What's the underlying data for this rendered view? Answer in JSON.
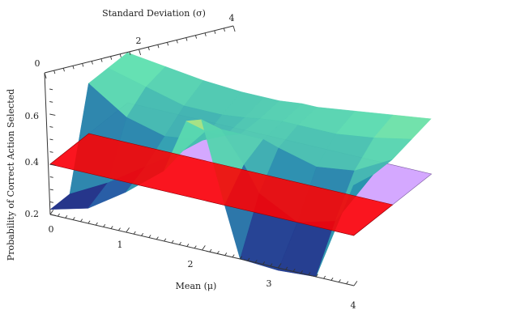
{
  "chart_data": {
    "type": "surface3d",
    "x_axis": {
      "label": "Mean (μ)",
      "range": [
        0,
        4
      ],
      "ticks": [
        "0",
        "1",
        "2",
        "3",
        "4"
      ]
    },
    "y_axis": {
      "label": "Standard Deviation (σ)",
      "range": [
        0,
        4
      ],
      "ticks": [
        "0",
        "2",
        "4"
      ]
    },
    "z_axis": {
      "label": "Probability of Correct Action Selected",
      "range": [
        0.18,
        0.72
      ],
      "ticks": [
        "0.2",
        "0.4",
        "0.6"
      ]
    },
    "surfaces": [
      {
        "color": "#cc99ff",
        "z": 0.4
      },
      {
        "color": "#ff0000",
        "region": {
          "x": [
            0,
            4
          ],
          "y": [
            0,
            2
          ]
        },
        "z": 0.4
      },
      {
        "colormap": [
          "#1a0a6b",
          "#1f4fa0",
          "#2a9bb0",
          "#5fe0b0",
          "#e8e860"
        ],
        "mu": [
          0.0,
          0.5,
          1.0,
          1.5,
          1.8,
          2.0,
          2.3,
          2.5,
          3.0,
          3.5,
          4.0
        ],
        "sigma": [
          0.0,
          1.0,
          2.0,
          3.0,
          4.0
        ],
        "z": [
          [
            0.22,
            0.22,
            0.6,
            0.6,
            0.6
          ],
          [
            0.26,
            0.3,
            0.5,
            0.56,
            0.58
          ],
          [
            0.36,
            0.4,
            0.46,
            0.52,
            0.56
          ],
          [
            0.48,
            0.5,
            0.48,
            0.52,
            0.55
          ],
          [
            0.7,
            0.6,
            0.52,
            0.53,
            0.55
          ],
          [
            0.72,
            0.62,
            0.54,
            0.54,
            0.55
          ],
          [
            0.4,
            0.5,
            0.54,
            0.55,
            0.56
          ],
          [
            0.2,
            0.4,
            0.52,
            0.55,
            0.56
          ],
          [
            0.19,
            0.32,
            0.48,
            0.55,
            0.58
          ],
          [
            0.2,
            0.36,
            0.5,
            0.57,
            0.6
          ],
          [
            0.6,
            0.58,
            0.58,
            0.6,
            0.62
          ]
        ]
      }
    ]
  }
}
